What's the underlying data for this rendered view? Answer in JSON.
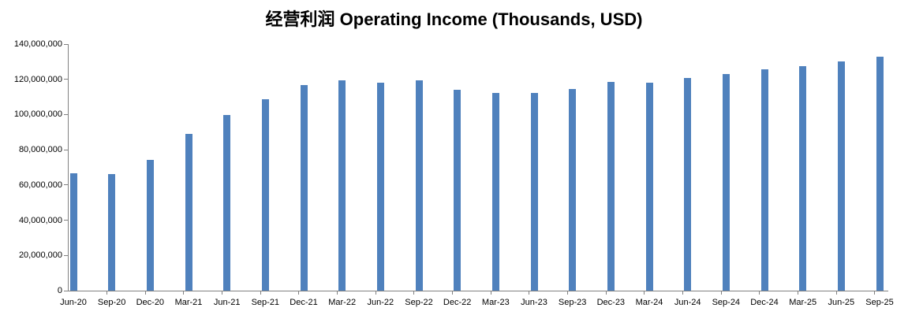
{
  "chart_data": {
    "type": "bar",
    "title": "经营利润 Operating Income (Thousands, USD)",
    "xlabel": "",
    "ylabel": "",
    "categories": [
      "Jun-20",
      "Sep-20",
      "Dec-20",
      "Mar-21",
      "Jun-21",
      "Sep-21",
      "Dec-21",
      "Mar-22",
      "Jun-22",
      "Sep-22",
      "Dec-22",
      "Mar-23",
      "Jun-23",
      "Sep-23",
      "Dec-23",
      "Mar-24",
      "Jun-24",
      "Sep-24",
      "Dec-24",
      "Mar-25",
      "Jun-25",
      "Sep-25"
    ],
    "values": [
      66700000,
      66300000,
      74200000,
      88900000,
      99900000,
      108900000,
      116900000,
      119400000,
      118300000,
      119400000,
      114000000,
      112300000,
      112200000,
      114300000,
      118700000,
      118200000,
      120600000,
      123200000,
      125700000,
      127400000,
      130200000,
      133000000
    ],
    "ylim": [
      0,
      140000000
    ],
    "y_tick_step": 20000000,
    "y_tick_labels": [
      "0",
      "20,000,000",
      "40,000,000",
      "60,000,000",
      "80,000,000",
      "100,000,000",
      "120,000,000",
      "140,000,000"
    ],
    "grid": false,
    "legend_position": "none",
    "bar_color": "#4F81BD",
    "axis_color": "#808080",
    "background_color": "#FFFFFF"
  }
}
